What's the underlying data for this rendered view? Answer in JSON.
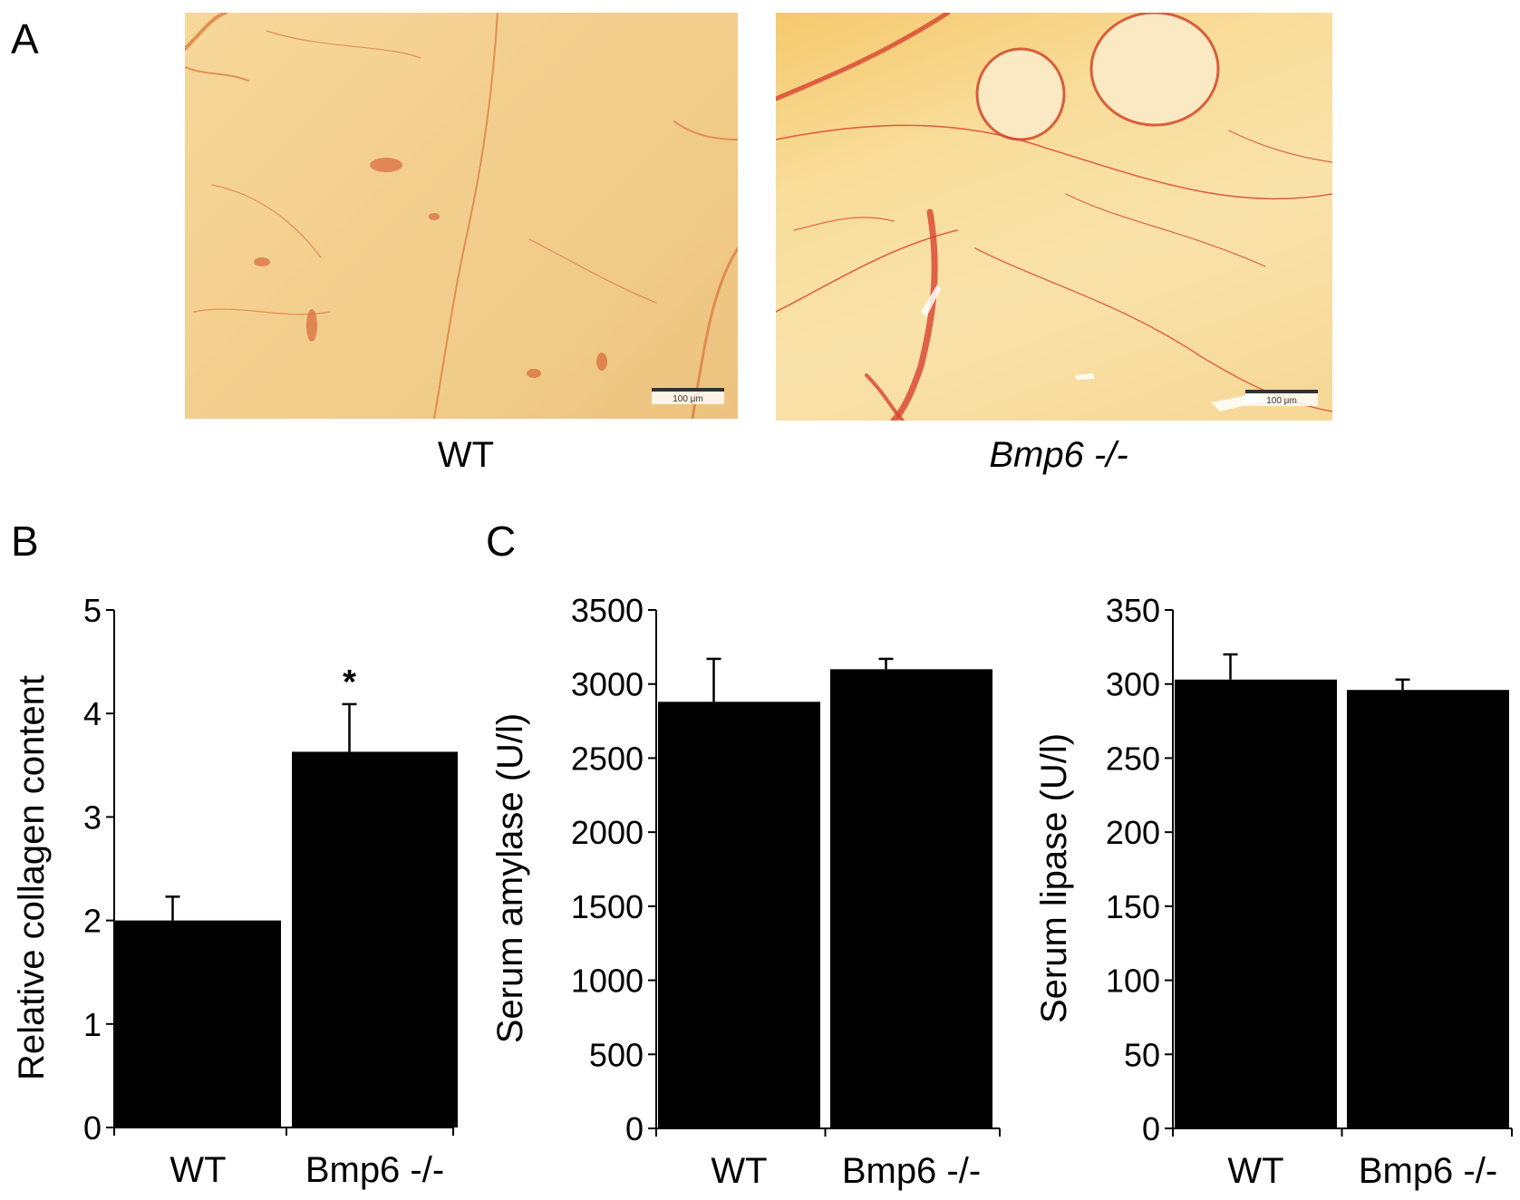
{
  "panels": {
    "a": {
      "letter": "A",
      "images": [
        {
          "caption": "WT",
          "italic": false,
          "scale_bar_label": "100 μm"
        },
        {
          "caption": "Bmp6 -/-",
          "italic": true,
          "scale_bar_label": "100 μm"
        }
      ]
    },
    "b": {
      "letter": "B"
    },
    "c": {
      "letter": "C"
    }
  },
  "chart_data": [
    {
      "type": "bar",
      "title": "",
      "categories": [
        "WT",
        "Bmp6 -/-"
      ],
      "values": [
        2.0,
        3.63
      ],
      "error": [
        0.23,
        0.46
      ],
      "ylabel": "Relative collagen content",
      "xlabel": "",
      "ylim": [
        0,
        5
      ],
      "yticks": [
        0,
        1,
        2,
        3,
        4,
        5
      ],
      "annotations": [
        {
          "category": "Bmp6 -/-",
          "text": "*"
        }
      ],
      "bar_color": "#000000",
      "grid": false
    },
    {
      "type": "bar",
      "title": "",
      "categories": [
        "WT",
        "Bmp6 -/-"
      ],
      "values": [
        2880,
        3100
      ],
      "error": [
        290,
        70
      ],
      "ylabel": "Serum amylase (U/l)",
      "xlabel": "",
      "ylim": [
        0,
        3500
      ],
      "yticks": [
        0,
        500,
        1000,
        1500,
        2000,
        2500,
        3000,
        3500
      ],
      "annotations": [],
      "bar_color": "#000000",
      "grid": false
    },
    {
      "type": "bar",
      "title": "",
      "categories": [
        "WT",
        "Bmp6 -/-"
      ],
      "values": [
        303,
        296
      ],
      "error": [
        17,
        7
      ],
      "ylabel": "Serum lipase (U/l)",
      "xlabel": "",
      "ylim": [
        0,
        350
      ],
      "yticks": [
        0,
        50,
        100,
        150,
        200,
        250,
        300,
        350
      ],
      "annotations": [],
      "bar_color": "#000000",
      "grid": false
    }
  ]
}
